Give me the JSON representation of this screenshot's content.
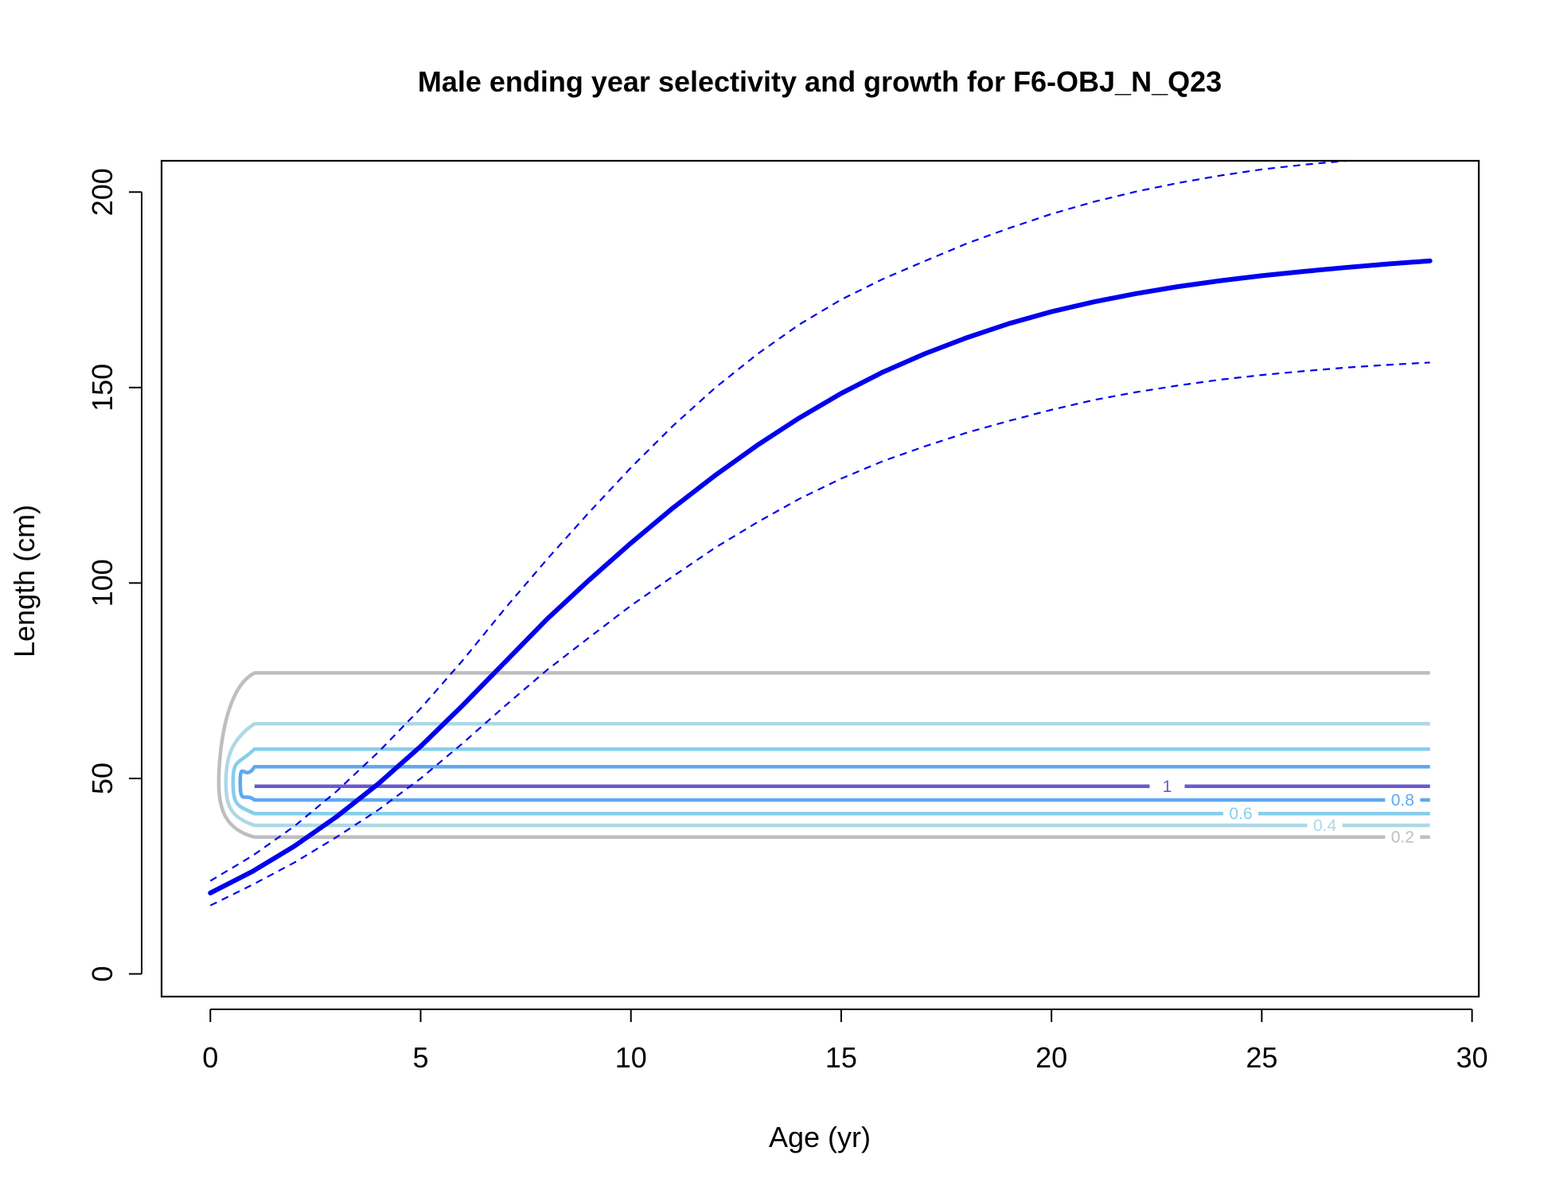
{
  "chart_data": {
    "type": "line",
    "title": "Male ending year selectivity and growth for F6-OBJ_N_Q23",
    "xlabel": "Age (yr)",
    "ylabel": "Length (cm)",
    "xlim": [
      -1.16,
      30.16
    ],
    "ylim": [
      -5.8,
      208
    ],
    "xticks": [
      0,
      5,
      10,
      15,
      20,
      25,
      30
    ],
    "yticks": [
      0,
      50,
      100,
      150,
      200
    ],
    "grid": false,
    "colors": {
      "growth": "#0000ee",
      "ci": "#0000ee",
      "frame": "#000000"
    },
    "series": [
      {
        "role": "mean-length",
        "style": "solid",
        "x": [
          0,
          1,
          2,
          3,
          4,
          5,
          6,
          7,
          8,
          9,
          10,
          11,
          12,
          13,
          14,
          15,
          16,
          17,
          18,
          19,
          20,
          21,
          22,
          23,
          24,
          25,
          26,
          27,
          28,
          29
        ],
        "y": [
          20.7,
          26.2,
          32.7,
          40.2,
          48.7,
          58.2,
          68.7,
          79.7,
          90.7,
          100.7,
          110.2,
          119.2,
          127.5,
          135.2,
          142.2,
          148.5,
          154,
          158.7,
          162.8,
          166.4,
          169.4,
          171.9,
          174,
          175.8,
          177.3,
          178.6,
          179.7,
          180.7,
          181.6,
          182.4
        ]
      },
      {
        "role": "upper-ci",
        "style": "dashed",
        "x": [
          0,
          1,
          2,
          3,
          4,
          5,
          6,
          7,
          8,
          9,
          10,
          11,
          12,
          13,
          14,
          15,
          16,
          17,
          18,
          19,
          20,
          21,
          22,
          23,
          24,
          25,
          26,
          27
        ],
        "y": [
          23.8,
          30.2,
          37.8,
          46.7,
          56.8,
          67.9,
          80.2,
          93.4,
          106,
          118,
          129.5,
          140.2,
          149.9,
          158.5,
          166.1,
          172.5,
          177.8,
          182.4,
          186.9,
          190.8,
          194.4,
          197.5,
          200.1,
          202.3,
          204.2,
          205.8,
          207,
          208
        ]
      },
      {
        "role": "lower-ci",
        "style": "dashed",
        "x": [
          0,
          1,
          2,
          3,
          4,
          5,
          6,
          7,
          8,
          9,
          10,
          11,
          12,
          13,
          14,
          15,
          16,
          17,
          18,
          19,
          20,
          21,
          22,
          23,
          24,
          25,
          26,
          27,
          28,
          29
        ],
        "y": [
          17.5,
          22.8,
          28.5,
          35,
          42,
          50,
          59,
          68.5,
          77.7,
          86,
          94.2,
          101.7,
          109,
          115.5,
          121.5,
          126.7,
          131.2,
          135,
          138.5,
          141.5,
          144.3,
          146.8,
          148.8,
          150.5,
          152,
          153.2,
          154.2,
          155.1,
          155.8,
          156.4
        ]
      }
    ],
    "contours": [
      {
        "level": "0.2",
        "color": "#bebebe",
        "upper": 77,
        "lower": 35,
        "tip": 49,
        "label": "0.2"
      },
      {
        "level": "0.4",
        "color": "#add8e6",
        "upper": 64,
        "lower": 38,
        "tip": 49,
        "label": "0.4"
      },
      {
        "level": "0.6",
        "color": "#87ceeb",
        "upper": 57.5,
        "lower": 41,
        "tip": 49,
        "label": "0.6"
      },
      {
        "level": "0.8",
        "color": "#5fa8f0",
        "upper": 53,
        "lower": 44.5,
        "tip": 49,
        "label": "0.8"
      },
      {
        "level": "1",
        "color": "#6a5acd",
        "upper": 48,
        "lower": 48,
        "tip": 48,
        "label": "1"
      }
    ]
  }
}
